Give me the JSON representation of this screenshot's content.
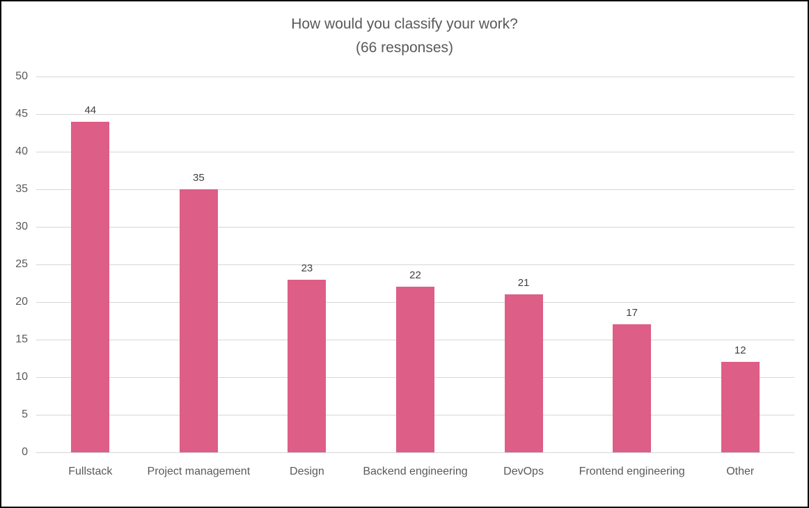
{
  "chart_data": {
    "type": "bar",
    "title": "How would you classify your work?",
    "subtitle": "(66 responses)",
    "categories": [
      "Fullstack",
      "Project management",
      "Design",
      "Backend engineering",
      "DevOps",
      "Frontend engineering",
      "Other"
    ],
    "values": [
      44,
      35,
      23,
      22,
      21,
      17,
      12
    ],
    "ylabel": "",
    "xlabel": "",
    "ylim": [
      0,
      50
    ],
    "ytick_step": 5,
    "grid": "horizontal",
    "legend_position": "none",
    "colors": {
      "bar": "#dd5e86",
      "gridline": "#d6d6d6",
      "axis_text": "#595959",
      "title_text": "#595959",
      "value_label_text": "#3f3f3f",
      "background": "#ffffff",
      "border": "#000000"
    }
  }
}
